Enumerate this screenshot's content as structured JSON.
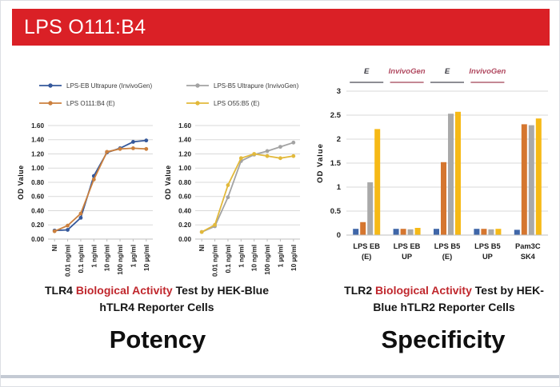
{
  "banner": {
    "title": "LPS O111:B4",
    "bg_color": "#da2026",
    "text_color": "#ffffff"
  },
  "colors": {
    "caption_highlight": "#c0272d",
    "grid": "#d9d9d9",
    "axis_text": "#1f1f1f",
    "bottom_strip": "#c4cad4"
  },
  "captions": {
    "left": {
      "prefix": "TLR4 ",
      "highlight": "Biological Activity",
      "suffix": " Test by HEK-Blue hTLR4 Reporter Cells"
    },
    "right": {
      "prefix": "TLR2 ",
      "highlight": "Biological Activity",
      "suffix": " Test by HEK-Blue hTLR2 Reporter Cells"
    }
  },
  "footers": {
    "left": "Potency",
    "right": "Specificity"
  },
  "chart_data": [
    {
      "type": "line",
      "categories": [
        "NI",
        "0.01 ng/ml",
        "0.1 ng/ml",
        "1 ng/ml",
        "10 ng/ml",
        "100 ng/ml",
        "1 µg/ml",
        "10 µg/ml"
      ],
      "series": [
        {
          "name": "LPS-EB Ultrapure (InvivoGen)",
          "color": "#35589b",
          "values": [
            0.12,
            0.13,
            0.3,
            0.89,
            1.22,
            1.28,
            1.37,
            1.39
          ]
        },
        {
          "name": "LPS O111:B4 (E)",
          "color": "#cb803e",
          "values": [
            0.11,
            0.19,
            0.36,
            0.84,
            1.23,
            1.27,
            1.28,
            1.27
          ]
        }
      ],
      "xlabel": "",
      "ylabel": "OD Value",
      "ylim": [
        0,
        1.6
      ],
      "ytick_step": 0.2,
      "ytick_decimals": 2,
      "grid": true,
      "legend_position": "top"
    },
    {
      "type": "line",
      "categories": [
        "NI",
        "0.01 ng/ml",
        "0.1 ng/ml",
        "1 ng/ml",
        "10 ng/ml",
        "100 ng/ml",
        "1 µg/ml",
        "10 µg/ml"
      ],
      "series": [
        {
          "name": "LPS-B5 Ultrapure (InvivoGen)",
          "color": "#a3a3a3",
          "values": [
            0.1,
            0.18,
            0.59,
            1.1,
            1.19,
            1.24,
            1.3,
            1.36
          ]
        },
        {
          "name": "LPS O55:B5 (E)",
          "color": "#e2b93b",
          "values": [
            0.1,
            0.2,
            0.76,
            1.14,
            1.2,
            1.17,
            1.14,
            1.17
          ]
        }
      ],
      "xlabel": "",
      "ylabel": "OD Value",
      "ylim": [
        0,
        1.6
      ],
      "ytick_step": 0.2,
      "ytick_decimals": 2,
      "grid": true,
      "legend_position": "top"
    },
    {
      "type": "bar",
      "categories": [
        [
          "LPS EB",
          "(E)"
        ],
        [
          "LPS EB",
          "UP"
        ],
        [
          "LPS B5",
          "(E)"
        ],
        [
          "LPS B5",
          "UP"
        ],
        [
          "Pam3C",
          "SK4"
        ]
      ],
      "series": [
        {
          "name": "blue",
          "color": "#3f66a8",
          "values": [
            0.13,
            0.13,
            0.13,
            0.13,
            0.11
          ]
        },
        {
          "name": "orange",
          "color": "#d5762f",
          "values": [
            0.27,
            0.13,
            1.52,
            0.13,
            2.31
          ]
        },
        {
          "name": "gray",
          "color": "#a9a9a9",
          "values": [
            1.1,
            0.12,
            2.53,
            0.12,
            2.29
          ]
        },
        {
          "name": "yellow",
          "color": "#f6b916",
          "values": [
            2.21,
            0.15,
            2.57,
            0.13,
            2.43
          ]
        }
      ],
      "xlabel": "",
      "ylabel": "OD Value",
      "ylim": [
        0,
        3
      ],
      "yticks": [
        "0",
        "0.5",
        "1",
        "1.5",
        "2",
        "2.5",
        "3"
      ],
      "annotations": [
        {
          "text": "E",
          "text_color": "#3c3c44",
          "line_color": "#4a4a55",
          "group": 0
        },
        {
          "text": "InvivoGen",
          "text_color": "#b0485f",
          "line_color": "#a04055",
          "group": 1
        },
        {
          "text": "E",
          "text_color": "#3c3c44",
          "line_color": "#4a4a55",
          "group": 2
        },
        {
          "text": "InvivoGen",
          "text_color": "#b0485f",
          "line_color": "#a04055",
          "group": 3
        }
      ],
      "grid": true,
      "legend_position": "none"
    }
  ]
}
